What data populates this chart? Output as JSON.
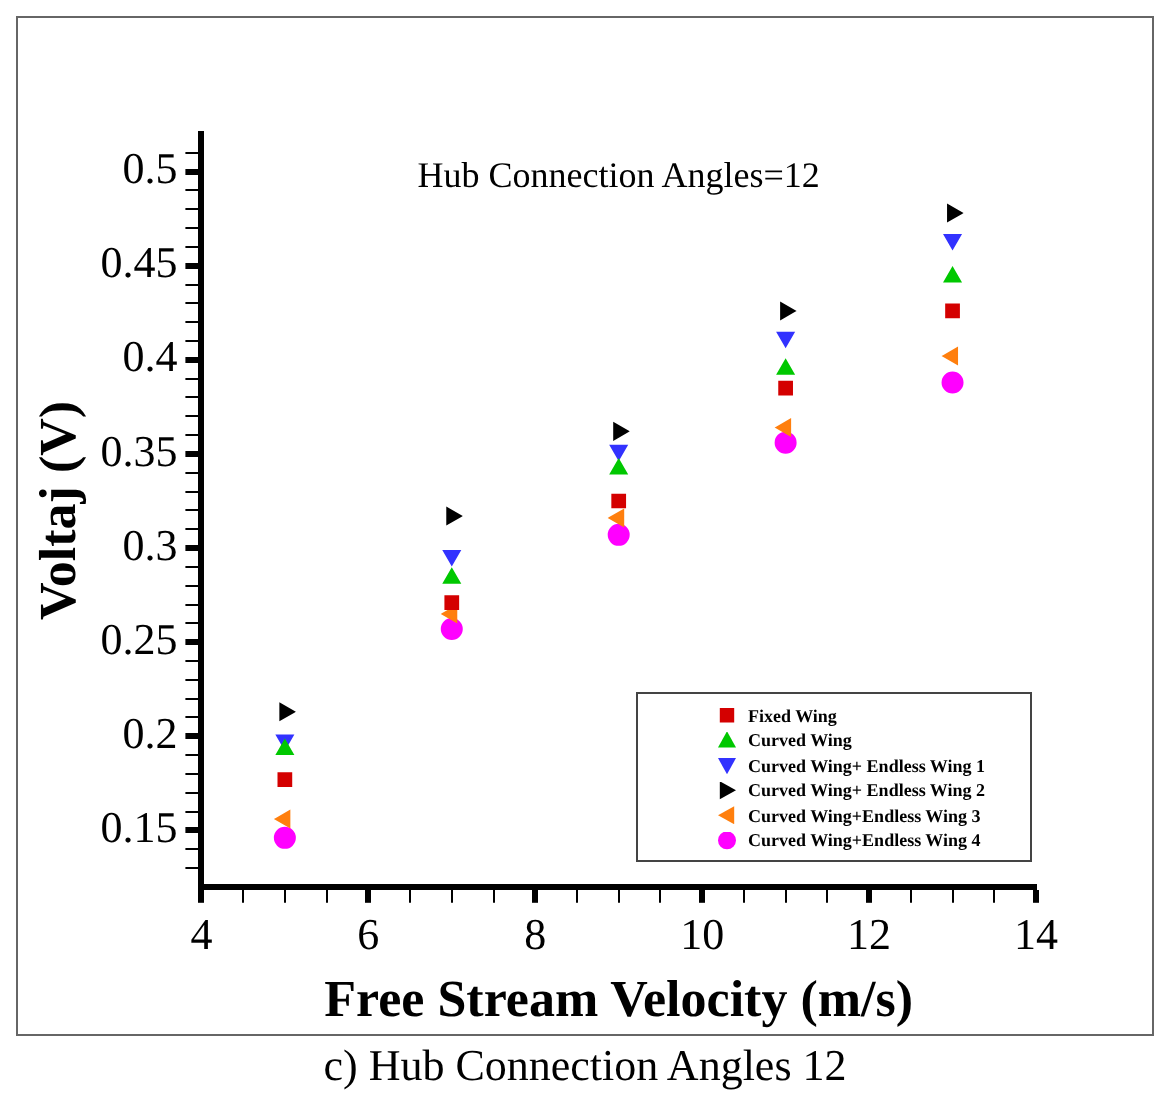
{
  "chart_data": {
    "type": "scatter",
    "title": "Hub Connection Angles=12",
    "xlabel": "Free Stream Velocity (m/s)",
    "ylabel": "Voltaj (V)",
    "annotations": [
      "c) Hub Connection Angles 12"
    ],
    "x": [
      5,
      7,
      9,
      11,
      13
    ],
    "series": [
      {
        "name": "Fixed Wing",
        "color": "#d40000",
        "marker": "square",
        "values": [
          0.177,
          0.271,
          0.325,
          0.385,
          0.426
        ]
      },
      {
        "name": "Curved Wing",
        "color": "#00c800",
        "marker": "triangle",
        "values": [
          0.193,
          0.284,
          0.342,
          0.395,
          0.444
        ]
      },
      {
        "name": "Curved Wing+ Endless Wing 1",
        "color": "#3232ff",
        "marker": "triangle-down",
        "values": [
          0.198,
          0.296,
          0.352,
          0.412,
          0.464
        ]
      },
      {
        "name": "Curved Wing+ Endless Wing 2",
        "color": "#000000",
        "marker": "triangle-right",
        "values": [
          0.213,
          0.317,
          0.362,
          0.426,
          0.478
        ]
      },
      {
        "name": "Curved Wing+Endless Wing 3",
        "color": "#ff7f0e",
        "marker": "triangle-left",
        "values": [
          0.156,
          0.265,
          0.316,
          0.364,
          0.402
        ]
      },
      {
        "name": "Curved Wing+Endless Wing 4",
        "color": "#ff00ff",
        "marker": "circle",
        "values": [
          0.146,
          0.257,
          0.307,
          0.356,
          0.388
        ]
      }
    ],
    "xlim": [
      4,
      14
    ],
    "xticks": [
      4,
      {
        "value": 4.5,
        "label": null
      },
      {
        "value": 5,
        "label": null
      },
      {
        "value": 5.5,
        "label": null
      },
      6,
      {
        "value": 6.5,
        "label": null
      },
      {
        "value": 7,
        "label": null
      },
      {
        "value": 7.5,
        "label": null
      },
      8,
      {
        "value": 8.5,
        "label": null
      },
      {
        "value": 9,
        "label": null
      },
      {
        "value": 9.5,
        "label": null
      },
      10,
      {
        "value": 10.5,
        "label": null
      },
      {
        "value": 11,
        "label": null
      },
      {
        "value": 11.5,
        "label": null
      },
      12,
      {
        "value": 12.5,
        "label": null
      },
      {
        "value": 13,
        "label": null
      },
      {
        "value": 13.5,
        "label": null
      },
      14
    ],
    "ylim": [
      0.12,
      0.52
    ],
    "yticks": [
      {
        "value": 0.13,
        "label": null
      },
      {
        "value": 0.14,
        "label": null
      },
      0.15,
      {
        "value": 0.16,
        "label": null
      },
      {
        "value": 0.17,
        "label": null
      },
      {
        "value": 0.18,
        "label": null
      },
      {
        "value": 0.19,
        "label": null
      },
      0.2,
      {
        "value": 0.21,
        "label": null
      },
      {
        "value": 0.22,
        "label": null
      },
      {
        "value": 0.23,
        "label": null
      },
      {
        "value": 0.24,
        "label": null
      },
      0.25,
      {
        "value": 0.26,
        "label": null
      },
      {
        "value": 0.27,
        "label": null
      },
      {
        "value": 0.28,
        "label": null
      },
      {
        "value": 0.29,
        "label": null
      },
      0.3,
      {
        "value": 0.31,
        "label": null
      },
      {
        "value": 0.32,
        "label": null
      },
      {
        "value": 0.33,
        "label": null
      },
      {
        "value": 0.34,
        "label": null
      },
      0.35,
      {
        "value": 0.36,
        "label": null
      },
      {
        "value": 0.37,
        "label": null
      },
      {
        "value": 0.38,
        "label": null
      },
      {
        "value": 0.39,
        "label": null
      },
      0.4,
      {
        "value": 0.41,
        "label": null
      },
      {
        "value": 0.42,
        "label": null
      },
      {
        "value": 0.43,
        "label": null
      },
      {
        "value": 0.44,
        "label": null
      },
      0.45,
      {
        "value": 0.46,
        "label": null
      },
      {
        "value": 0.47,
        "label": null
      },
      {
        "value": 0.48,
        "label": null
      },
      {
        "value": 0.49,
        "label": null
      },
      0.5,
      {
        "value": 0.51,
        "label": null
      }
    ],
    "grid": false,
    "legend": "bottom right"
  }
}
